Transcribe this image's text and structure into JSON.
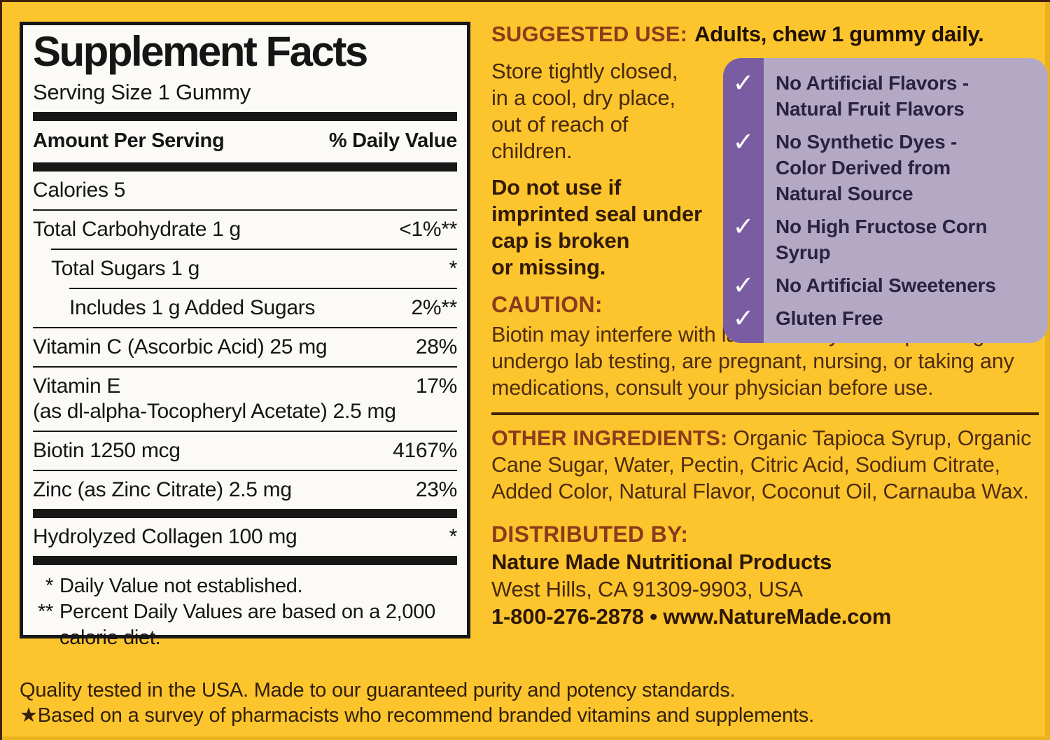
{
  "colors": {
    "background_yellow": "#fdc52d",
    "panel_background": "#fbfaf6",
    "panel_black": "#181818",
    "heading_rust": "#8c3a1c",
    "body_brown": "#4f2d10",
    "bold_dark_brown": "#2d1705",
    "purple_strip": "#7a5ca3",
    "purple_box_background": "#b3a9c4",
    "checklist_text": "#2a2143",
    "checkmark": "#ffffff"
  },
  "panel": {
    "title": "Supplement Facts",
    "serving_size": "Serving Size 1 Gummy",
    "header": {
      "amount": "Amount Per Serving",
      "daily_value": "% Daily Value"
    },
    "rows": [
      {
        "label": "Calories  5",
        "value": "",
        "indent": 0,
        "sep": "none"
      },
      {
        "label": "Total Carbohydrate  1 g",
        "value": "<1%**",
        "indent": 0,
        "sep": "line"
      },
      {
        "label": "Total Sugars  1 g",
        "value": "*",
        "indent": 1,
        "sep": "line"
      },
      {
        "label": "Includes 1 g Added Sugars",
        "value": "2%**",
        "indent": 2,
        "sep": "line"
      },
      {
        "label": "Vitamin C (Ascorbic Acid)  25 mg",
        "value": "28%",
        "indent": 0,
        "sep": "line"
      },
      {
        "label": "Vitamin E",
        "sub": "(as dl-alpha-Tocopheryl Acetate) 2.5 mg",
        "value": "17%",
        "indent": 0,
        "sep": "line"
      },
      {
        "label": "Biotin 1250 mcg",
        "value": "4167%",
        "indent": 0,
        "sep": "line"
      },
      {
        "label": "Zinc (as Zinc Citrate) 2.5 mg",
        "value": "23%",
        "indent": 0,
        "sep": "line"
      },
      {
        "label": "Hydrolyzed Collagen 100 mg",
        "value": "*",
        "indent": 0,
        "sep": "thick"
      }
    ],
    "footnotes": [
      {
        "mark": "*",
        "text": "Daily Value not established."
      },
      {
        "mark": "**",
        "text": "Percent Daily Values are based on a 2,000 calorie diet."
      }
    ]
  },
  "right": {
    "suggested_use": {
      "heading": "SUGGESTED USE:",
      "text": "Adults, chew 1 gummy daily."
    },
    "storage": "Store tightly closed,\nin a cool, dry place,\nout of reach of\nchildren.",
    "seal_warning": "Do not use if\nimprinted seal under\ncap is broken\nor missing.",
    "checkmark_glyph": "✓",
    "benefits": [
      "No Artificial Flavors -\nNatural Fruit Flavors",
      "No Synthetic Dyes -\nColor Derived from\nNatural Source",
      "No High Fructose Corn Syrup",
      "No Artificial Sweeteners",
      "Gluten Free"
    ],
    "caution": {
      "heading": "CAUTION:",
      "text": "Biotin may interfere with lab tests. If you are planning to undergo lab testing, are pregnant, nursing, or taking any medications, consult your physician before use."
    },
    "other_ingredients": {
      "heading": "OTHER INGREDIENTS:",
      "text": "Organic Tapioca Syrup, Organic Cane Sugar, Water, Pectin, Citric Acid, Sodium Citrate, Added Color, Natural Flavor, Coconut Oil, Carnauba Wax."
    },
    "distributed": {
      "heading": "DISTRIBUTED BY:",
      "company": "Nature Made Nutritional Products",
      "address": "West Hills, CA 91309-9903, USA",
      "contact": "1-800-276-2878 • www.NatureMade.com"
    }
  },
  "footer": {
    "line1": "Quality tested in the USA. Made to our guaranteed purity and potency standards.",
    "line2": "★Based on a survey of pharmacists who recommend branded vitamins and supplements."
  }
}
